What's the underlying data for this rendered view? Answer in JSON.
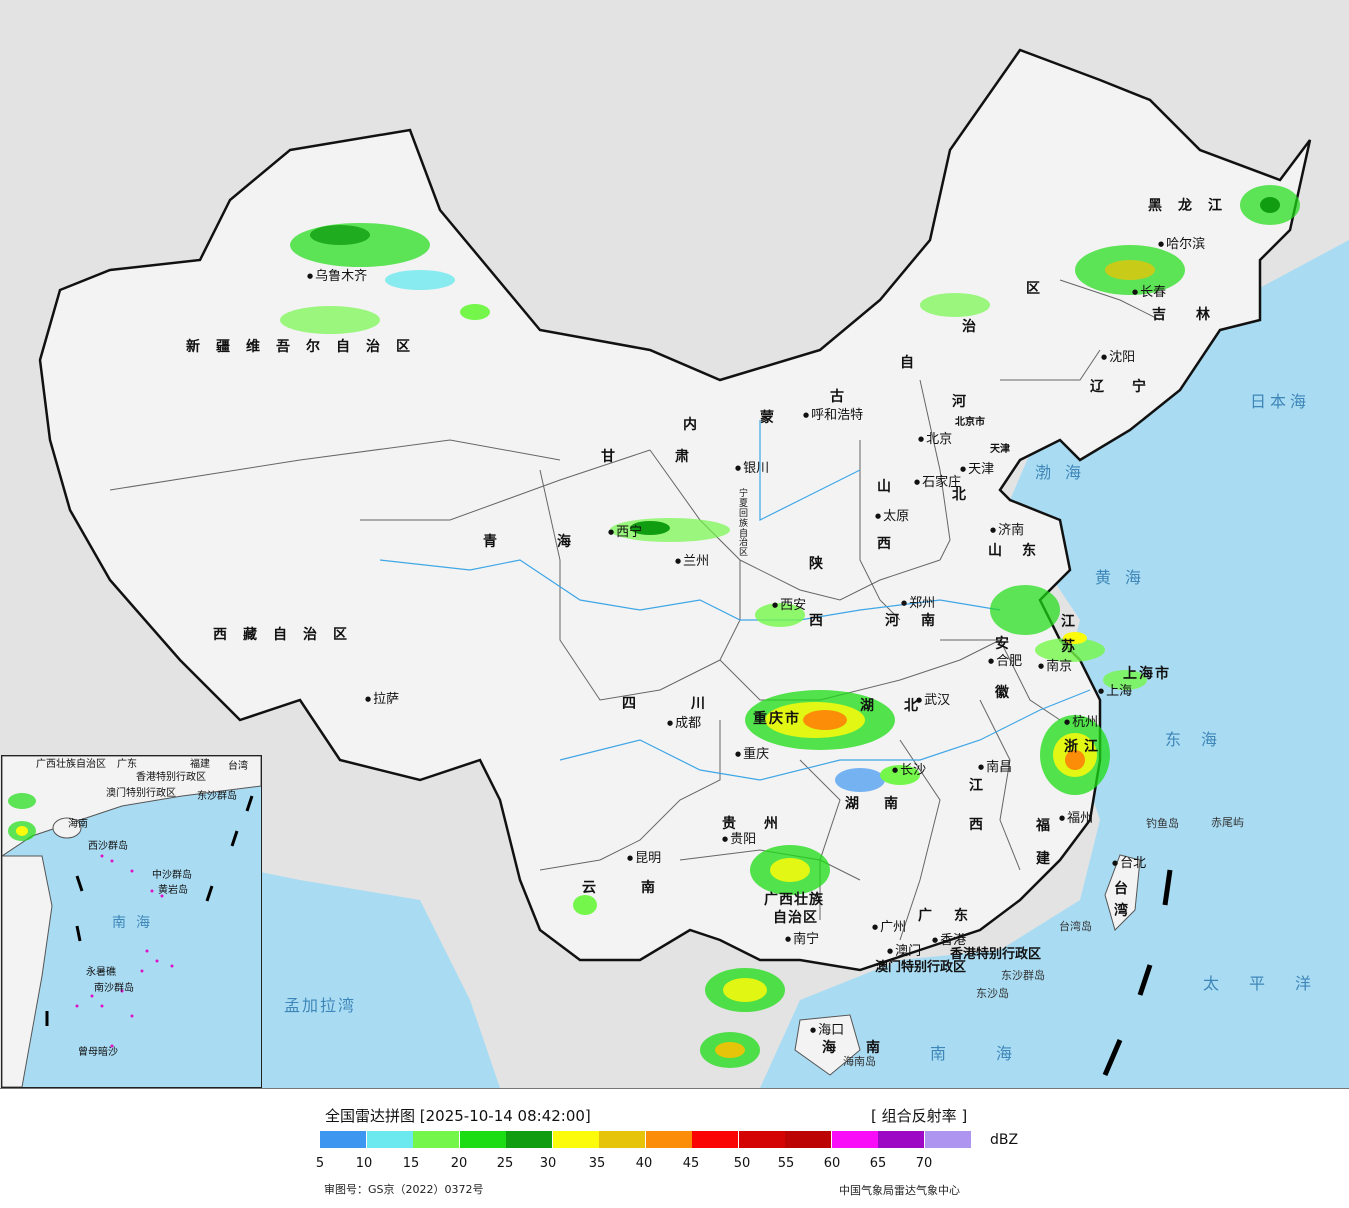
{
  "header": {
    "title": "全国雷达拼图 [2025-10-14 08:42:00]",
    "product": "[ 组合反射率 ]",
    "unit": "dBZ"
  },
  "legend": {
    "colors": [
      "#3d96ef",
      "#6ce9ee",
      "#74f74a",
      "#1cdc13",
      "#119d11",
      "#fbfb0b",
      "#e5c40a",
      "#fb8d08",
      "#fb0404",
      "#d50404",
      "#bc0404",
      "#f90cf8",
      "#9d08c4",
      "#ad95f0"
    ],
    "ticks": [
      "5",
      "10",
      "15",
      "20",
      "25",
      "30",
      "35",
      "40",
      "45",
      "50",
      "55",
      "60",
      "65",
      "70"
    ]
  },
  "footer": {
    "approval": "审图号：GS京（2022）0372号",
    "source": "中国气象局雷达气象中心"
  },
  "regions": {
    "xinjiang": "新疆维吾尔自治区",
    "tibet": "西藏自治区",
    "qinghai": "青海",
    "gansu": "甘肃",
    "ningxia": "宁夏回族自治区",
    "neimenggu": [
      "内",
      "蒙",
      "古",
      "自",
      "治",
      "区"
    ],
    "heilongjiang": "黑龙江",
    "jilin": "吉林",
    "liaoning": "辽宁",
    "hebei": [
      "河",
      "北"
    ],
    "shanxi": [
      "山",
      "西"
    ],
    "shandong": "山东",
    "henan": "河南",
    "shaanxi": [
      "陕",
      "西"
    ],
    "sichuan": "四川",
    "chongqing": "重庆市",
    "hubei": "湖北",
    "hunan": "湖南",
    "jiangxi": [
      "江",
      "西"
    ],
    "anhui": [
      "安",
      "徽"
    ],
    "jiangsu": [
      "江",
      "苏"
    ],
    "zhejiang": "浙江",
    "fujian": [
      "福",
      "建"
    ],
    "guangdong": "广东",
    "guangxi": [
      "广西壮族",
      "自治区"
    ],
    "guizhou": "贵州",
    "yunnan": "云南",
    "hainan": "海南",
    "taiwan": [
      "台",
      "湾"
    ],
    "shanghai": "上海市",
    "beijing": "北京市",
    "tianjin": "天津",
    "hongkong": "香港特别行政区",
    "macao": "澳门特别行政区"
  },
  "cities": {
    "urumqi": "乌鲁木齐",
    "lhasa": "拉萨",
    "xining": "西宁",
    "lanzhou": "兰州",
    "yinchuan": "银川",
    "hohhot": "呼和浩特",
    "harbin": "哈尔滨",
    "changchun": "长春",
    "shenyang": "沈阳",
    "beijing": "北京",
    "tianjin": "天津",
    "shijiazhuang": "石家庄",
    "taiyuan": "太原",
    "jinan": "济南",
    "zhengzhou": "郑州",
    "xian": "西安",
    "chengdu": "成都",
    "chongqing": "重庆",
    "wuhan": "武汉",
    "changsha": "长沙",
    "nanchang": "南昌",
    "hefei": "合肥",
    "nanjing": "南京",
    "shanghai": "上海",
    "hangzhou": "杭州",
    "fuzhou": "福州",
    "guiyang": "贵阳",
    "kunming": "昆明",
    "nanning": "南宁",
    "guangzhou": "广州",
    "hongkong": "香港",
    "macao": "澳门",
    "haikou": "海口",
    "taibei": "台北"
  },
  "seas": {
    "japan_sea": "日本海",
    "bohai": "渤海",
    "yellow_sea": "黄海",
    "east_sea": "东海",
    "south_sea": "南海",
    "pacific": "太平洋",
    "bengal": "孟加拉湾"
  },
  "islands": {
    "diaoyu": "钓鱼岛",
    "chiwei": "赤尾屿",
    "taiwan_island": "台湾岛",
    "dongsha_islands": "东沙群岛",
    "dongsha_island": "东沙岛",
    "hainan_island": "海南岛"
  },
  "inset": {
    "labels": [
      "广西壮族自治区",
      "广东",
      "福建",
      "台湾",
      "香港特别行政区",
      "澳门特别行政区",
      "东沙群岛",
      "海南",
      "西沙群岛",
      "中沙群岛",
      "黄岩岛",
      "南海",
      "永暑礁",
      "南沙群岛",
      "曾母暗沙"
    ]
  }
}
